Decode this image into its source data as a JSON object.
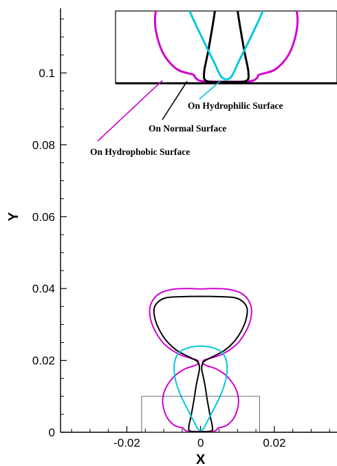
{
  "chart_data": {
    "type": "line",
    "title": "",
    "xlabel": "X",
    "ylabel": "Y",
    "xlim": [
      -0.038,
      0.037
    ],
    "ylim": [
      0,
      0.118
    ],
    "grid": false,
    "x_ticks": [
      {
        "value": -0.02,
        "label": "-0.02"
      },
      {
        "value": 0,
        "label": "0"
      },
      {
        "value": 0.02,
        "label": "0.02"
      }
    ],
    "y_ticks": [
      {
        "value": 0,
        "label": "0"
      },
      {
        "value": 0.02,
        "label": "0.02"
      },
      {
        "value": 0.04,
        "label": "0.04"
      },
      {
        "value": 0.06,
        "label": "0.06"
      },
      {
        "value": 0.08,
        "label": "0.08"
      },
      {
        "value": 0.1,
        "label": "0.1"
      }
    ],
    "series": [
      {
        "name": "On Hydrophobic Surface",
        "color": "#d000d0",
        "x": [
          0,
          0.0035,
          0.0045,
          0.0048,
          0.0072,
          0.0093,
          0.0103,
          0.0095,
          0.0072,
          0.0045,
          0.0018,
          0.0008,
          0.0008,
          0.003,
          0.006,
          0.0095,
          0.0118,
          0.0134,
          0.0138,
          0.0128,
          0.0108,
          0.0075,
          0.0035,
          0,
          -0.0035,
          -0.0075,
          -0.0108,
          -0.0128,
          -0.0138,
          -0.0134,
          -0.0118,
          -0.0095,
          -0.006,
          -0.003,
          -0.0008,
          -0.0008,
          -0.0018,
          -0.0045,
          -0.0072,
          -0.0095,
          -0.0103,
          -0.0093,
          -0.0072,
          -0.0048,
          -0.0045,
          -0.0035,
          0
        ],
        "y": [
          0.0002,
          0.0003,
          0.0008,
          0.0012,
          0.002,
          0.0045,
          0.0085,
          0.0122,
          0.0155,
          0.0175,
          0.0185,
          0.019,
          0.02,
          0.0207,
          0.0218,
          0.0242,
          0.0272,
          0.0308,
          0.0343,
          0.037,
          0.0388,
          0.0398,
          0.04,
          0.0399,
          0.04,
          0.0398,
          0.0388,
          0.037,
          0.0343,
          0.0308,
          0.0272,
          0.0242,
          0.0218,
          0.0207,
          0.02,
          0.019,
          0.0185,
          0.0175,
          0.0155,
          0.0122,
          0.0085,
          0.0045,
          0.002,
          0.0012,
          0.0008,
          0.0003,
          0.0002
        ]
      },
      {
        "name": "On Normal Surface",
        "color": "#000000",
        "x": [
          0,
          0.0028,
          0.0032,
          0.0026,
          0.0018,
          0.0012,
          0.0006,
          0.0003,
          0.0008,
          0.0032,
          0.0065,
          0.0093,
          0.0112,
          0.0124,
          0.0126,
          0.0115,
          0.0095,
          0.0065,
          0.003,
          0,
          -0.003,
          -0.0065,
          -0.0095,
          -0.0115,
          -0.0126,
          -0.0124,
          -0.0112,
          -0.0093,
          -0.0065,
          -0.0032,
          -0.0008,
          -0.0003,
          -0.0006,
          -0.0012,
          -0.0018,
          -0.0026,
          -0.0032,
          -0.0028,
          0
        ],
        "y": [
          0.0002,
          0.0003,
          0.0015,
          0.0045,
          0.009,
          0.013,
          0.016,
          0.0178,
          0.0196,
          0.021,
          0.0228,
          0.0255,
          0.0285,
          0.0317,
          0.0345,
          0.0363,
          0.0374,
          0.0377,
          0.0378,
          0.0378,
          0.0378,
          0.0377,
          0.0374,
          0.0363,
          0.0345,
          0.0317,
          0.0285,
          0.0255,
          0.0228,
          0.021,
          0.0196,
          0.0178,
          0.016,
          0.013,
          0.009,
          0.0045,
          0.0015,
          0.0003,
          0.0002
        ]
      },
      {
        "name": "On Hydrophilic Surface",
        "color": "#00c8dc",
        "x": [
          0,
          0.0008,
          0.0018,
          0.0036,
          0.0055,
          0.0068,
          0.0072,
          0.0068,
          0.0055,
          0.0034,
          0.0015,
          0,
          -0.0015,
          -0.0034,
          -0.0055,
          -0.0068,
          -0.0072,
          -0.0068,
          -0.0055,
          -0.0036,
          -0.0018,
          -0.0008,
          0
        ],
        "y": [
          0.0005,
          0.001,
          0.003,
          0.0065,
          0.0105,
          0.0145,
          0.0178,
          0.0205,
          0.0225,
          0.0235,
          0.0239,
          0.024,
          0.0239,
          0.0235,
          0.0225,
          0.0205,
          0.0178,
          0.0145,
          0.0105,
          0.0065,
          0.003,
          0.001,
          0.0005
        ]
      }
    ],
    "highlight_box": {
      "x": [
        -0.016,
        0.016
      ],
      "y": [
        0,
        0.01
      ]
    },
    "annotations": [
      {
        "text": "On Hydrophilic Surface",
        "color": "#00c8dc"
      },
      {
        "text": "On Normal Surface",
        "color": "#000000"
      },
      {
        "text": "On Hydrophobic Surface",
        "color": "#d000d0"
      }
    ]
  }
}
